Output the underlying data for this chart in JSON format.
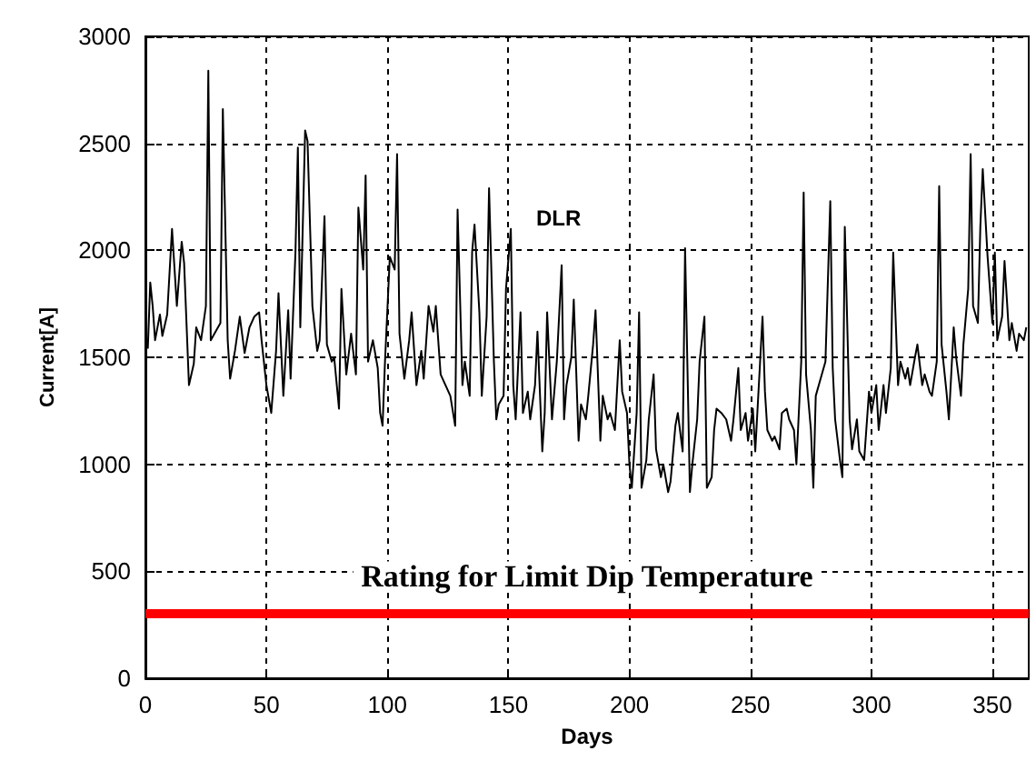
{
  "chart_data": {
    "type": "line",
    "xlabel": "Days",
    "ylabel": "Current[A]",
    "xlim": [
      0,
      365
    ],
    "xticks": [
      0,
      50,
      100,
      150,
      200,
      250,
      300,
      350
    ],
    "ylim": [
      0,
      3000
    ],
    "yticks": [
      0,
      500,
      1000,
      1500,
      2000,
      2500,
      3000
    ],
    "grid": true,
    "marker": "none",
    "line_style": "solid",
    "ref_lines": [
      {
        "axis": "y",
        "value": 300,
        "label": "Rating for Limit Dip Temperature",
        "color": "#ff0000"
      }
    ],
    "series": [
      {
        "name": "DLR",
        "color": "#000000",
        "x": [
          1,
          2,
          3,
          4,
          6,
          7,
          9,
          11,
          13,
          15,
          16,
          18,
          20,
          21,
          23,
          25,
          26,
          27,
          29,
          31,
          32,
          34,
          35,
          37,
          39,
          41,
          43,
          45,
          47,
          48,
          50,
          52,
          54,
          55,
          57,
          59,
          60,
          62,
          63,
          64,
          66,
          67,
          69,
          71,
          72,
          74,
          75,
          77,
          78,
          80,
          81,
          83,
          85,
          87,
          88,
          90,
          91,
          92,
          94,
          96,
          97,
          98,
          99,
          101,
          103,
          104,
          105,
          107,
          109,
          110,
          112,
          114,
          115,
          117,
          119,
          120,
          122,
          124,
          126,
          128,
          129,
          131,
          132,
          134,
          135,
          136,
          138,
          139,
          141,
          142,
          144,
          145,
          146,
          148,
          149,
          151,
          152,
          153,
          155,
          156,
          158,
          159,
          161,
          162,
          164,
          165,
          166,
          168,
          170,
          172,
          173,
          174,
          176,
          177,
          179,
          180,
          182,
          183,
          185,
          186,
          188,
          189,
          191,
          192,
          194,
          196,
          197,
          199,
          200,
          201,
          203,
          204,
          205,
          207,
          208,
          210,
          211,
          213,
          214,
          216,
          217,
          219,
          220,
          222,
          223,
          225,
          226,
          228,
          229,
          231,
          232,
          234,
          235,
          236,
          238,
          240,
          241,
          242,
          243,
          245,
          246,
          248,
          249,
          251,
          252,
          254,
          255,
          256,
          257,
          259,
          260,
          262,
          263,
          265,
          266,
          268,
          269,
          271,
          272,
          273,
          275,
          276,
          277,
          279,
          281,
          283,
          284,
          285,
          287,
          288,
          289,
          291,
          292,
          294,
          295,
          297,
          299,
          300,
          302,
          303,
          305,
          306,
          308,
          309,
          311,
          312,
          314,
          315,
          316,
          318,
          319,
          321,
          322,
          324,
          325,
          327,
          328,
          329,
          331,
          332,
          334,
          335,
          337,
          338,
          340,
          341,
          342,
          344,
          345,
          346,
          348,
          350,
          351,
          352,
          354,
          355,
          357,
          358,
          360,
          361,
          363,
          364
        ],
        "values": [
          1540,
          1850,
          1740,
          1580,
          1700,
          1600,
          1700,
          2100,
          1740,
          2040,
          1940,
          1370,
          1470,
          1640,
          1580,
          1740,
          2840,
          1580,
          1620,
          1660,
          2660,
          1580,
          1400,
          1530,
          1690,
          1520,
          1640,
          1690,
          1710,
          1580,
          1370,
          1240,
          1530,
          1800,
          1320,
          1720,
          1400,
          1990,
          2480,
          1640,
          2560,
          2510,
          1740,
          1530,
          1580,
          2160,
          1560,
          1480,
          1500,
          1260,
          1820,
          1420,
          1610,
          1420,
          2200,
          1910,
          2350,
          1480,
          1580,
          1450,
          1240,
          1180,
          1480,
          1970,
          1910,
          2450,
          1610,
          1400,
          1580,
          1710,
          1370,
          1530,
          1400,
          1740,
          1620,
          1740,
          1420,
          1370,
          1320,
          1180,
          2190,
          1370,
          1480,
          1320,
          1990,
          2120,
          1710,
          1320,
          1690,
          2290,
          1480,
          1210,
          1280,
          1320,
          1820,
          2100,
          1370,
          1210,
          1710,
          1240,
          1340,
          1210,
          1370,
          1620,
          1060,
          1240,
          1710,
          1210,
          1480,
          1930,
          1210,
          1370,
          1500,
          1770,
          1110,
          1280,
          1210,
          1320,
          1560,
          1720,
          1110,
          1320,
          1210,
          1240,
          1160,
          1580,
          1340,
          1240,
          1000,
          890,
          1240,
          1710,
          890,
          1020,
          1210,
          1420,
          1070,
          940,
          1000,
          870,
          920,
          1180,
          1240,
          1060,
          2010,
          870,
          1000,
          1210,
          1480,
          1690,
          890,
          940,
          1160,
          1260,
          1240,
          1210,
          1160,
          1110,
          1210,
          1450,
          1160,
          1240,
          1110,
          1260,
          1060,
          1480,
          1690,
          1340,
          1160,
          1110,
          1130,
          1070,
          1240,
          1260,
          1210,
          1160,
          1000,
          1480,
          2270,
          1420,
          1160,
          890,
          1320,
          1400,
          1480,
          2230,
          1450,
          1210,
          1020,
          940,
          2110,
          1210,
          1070,
          1210,
          1060,
          1020,
          1340,
          1240,
          1370,
          1160,
          1370,
          1240,
          1450,
          1990,
          1370,
          1480,
          1400,
          1450,
          1370,
          1500,
          1560,
          1370,
          1420,
          1340,
          1320,
          1480,
          2300,
          1560,
          1340,
          1210,
          1640,
          1500,
          1320,
          1560,
          1820,
          2450,
          1740,
          1660,
          2110,
          2380,
          1970,
          1660,
          1990,
          1580,
          1690,
          1950,
          1580,
          1660,
          1530,
          1610,
          1580,
          1640
        ]
      }
    ]
  }
}
